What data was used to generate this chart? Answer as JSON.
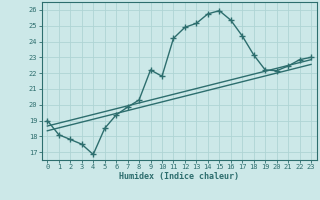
{
  "xlabel": "Humidex (Indice chaleur)",
  "bg_color": "#cce8e8",
  "grid_color": "#afd4d4",
  "line_color": "#2d6e6e",
  "xlim": [
    -0.5,
    23.5
  ],
  "ylim": [
    16.5,
    26.5
  ],
  "xticks": [
    0,
    1,
    2,
    3,
    4,
    5,
    6,
    7,
    8,
    9,
    10,
    11,
    12,
    13,
    14,
    15,
    16,
    17,
    18,
    19,
    20,
    21,
    22,
    23
  ],
  "yticks": [
    17,
    18,
    19,
    20,
    21,
    22,
    23,
    24,
    25,
    26
  ],
  "curve_x": [
    0,
    1,
    2,
    3,
    4,
    5,
    6,
    7,
    8,
    9,
    10,
    11,
    12,
    13,
    14,
    15,
    16,
    17,
    18,
    19,
    20,
    21,
    22,
    23
  ],
  "curve_y": [
    19.0,
    18.1,
    17.8,
    17.5,
    16.85,
    18.5,
    19.35,
    19.85,
    20.3,
    22.2,
    21.8,
    24.2,
    24.9,
    25.15,
    25.75,
    25.95,
    25.35,
    24.35,
    23.15,
    22.2,
    22.15,
    22.45,
    22.85,
    23.0
  ],
  "line1_x": [
    0,
    23
  ],
  "line1_y": [
    18.65,
    22.85
  ],
  "line2_x": [
    0,
    23
  ],
  "line2_y": [
    18.35,
    22.55
  ],
  "marker": "+",
  "markersize": 4,
  "markeredgewidth": 1.0,
  "linewidth": 1.0
}
